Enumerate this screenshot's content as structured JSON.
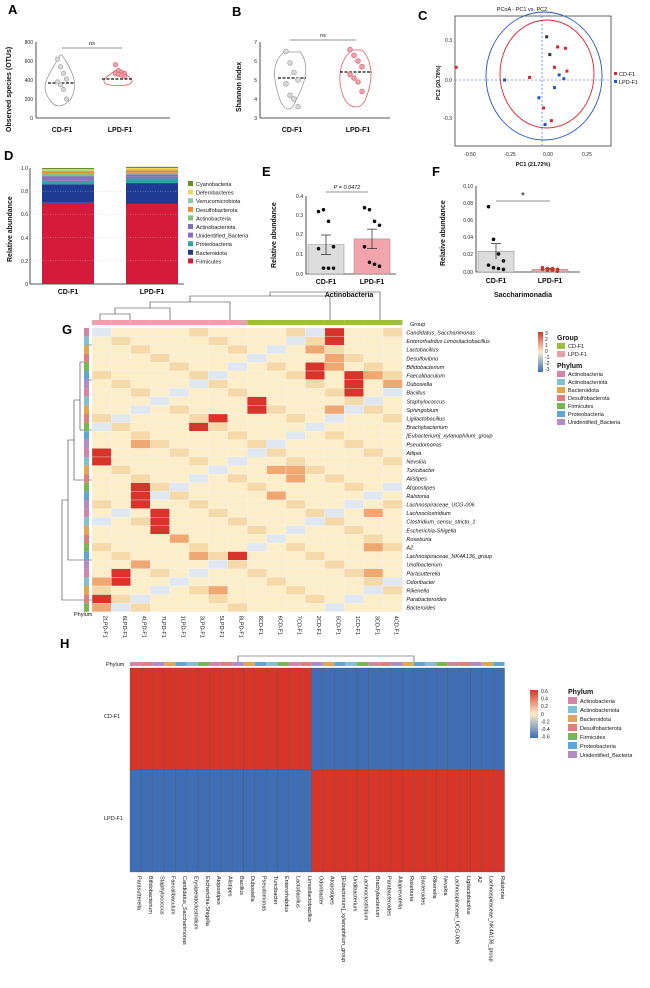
{
  "panels": {
    "A": {
      "label": "A",
      "ylabel": "Observed species (OTUs)",
      "yticks": [
        "800",
        "600",
        "400",
        "200",
        "0"
      ],
      "groups": [
        "CD-F1",
        "LPD-F1"
      ],
      "sig": "ns"
    },
    "B": {
      "label": "B",
      "ylabel": "Shannon index",
      "yticks": [
        "7",
        "6",
        "5",
        "4",
        "3"
      ],
      "groups": [
        "CD-F1",
        "LPD-F1"
      ],
      "sig": "ns"
    },
    "C": {
      "label": "C",
      "title": "PCoA - PC1 vs. PC2",
      "xlabel": "PC1 (21.72%)",
      "ylabel": "PC2 (20.78%)",
      "xticks": [
        "-0.50",
        "-0.25",
        "0.00",
        "0.25"
      ],
      "yticks": [
        "0.3",
        "0.0",
        "-0.3"
      ],
      "legend": [
        "CD-F1",
        "LPD-F1"
      ]
    },
    "D": {
      "label": "D",
      "ylabel": "Relative abundance",
      "yticks": [
        "1.0",
        "0.8",
        "0.6",
        "0.4",
        "0.2",
        "0"
      ],
      "groups": [
        "CD-F1",
        "LPD-F1"
      ],
      "legend": [
        "Cyanobacteria",
        "Deferribacteres",
        "Verrucomicrobiota",
        "Desulfobacterota",
        "Actinobacteria",
        "Actinobacteriota",
        "Unidentified_Bacteria",
        "Proteobacteria",
        "Bacteroidota",
        "Firmicutes"
      ]
    },
    "E": {
      "label": "E",
      "ylabel": "Relative abundance",
      "yticks": [
        "0.4",
        "0.3",
        "0.2",
        "0.1",
        "0.0"
      ],
      "groups": [
        "CD-F1",
        "LPD-F1"
      ],
      "xlabel": "Actinobacteria",
      "pvalue": "P = 0.0472"
    },
    "F": {
      "label": "F",
      "ylabel": "Relative abundance",
      "yticks": [
        "0.10",
        "0.08",
        "0.06",
        "0.04",
        "0.02",
        "0.00"
      ],
      "groups": [
        "CD-F1",
        "LPD-F1"
      ],
      "xlabel": "Saccharimonadia",
      "sig": "*"
    },
    "G": {
      "label": "G",
      "group_title": "Group",
      "row_label": "Phylum",
      "groups": [
        "CD-F1",
        "LPD-F1"
      ],
      "phylum_title": "Phylum",
      "phyla": [
        "Actinobacteria",
        "Actinobacteriota",
        "Bacteroidota",
        "Desulfobacterota",
        "Firmicutes",
        "Proteobacteria",
        "Unidentified_Bacteria"
      ],
      "scale_ticks": [
        "3",
        "2",
        "1",
        "0",
        "-1",
        "-2",
        "-3"
      ],
      "columns": [
        "2LPD-F1",
        "6LPD-F1",
        "4LPD-F1",
        "7LPD-F1",
        "1LPD-F1",
        "3LPD-F1",
        "5LPD-F1",
        "8LPD-F1",
        "8CD-F1",
        "6CD-F1",
        "7CD-F1",
        "2CD-F1",
        "5CD-F1",
        "1CD-F1",
        "3CD-F1",
        "4CD-F1"
      ],
      "rows": [
        "Candidatus_Saccharimonas",
        "Enterorhabdus Limosilactobacillus",
        "Lactobacillus",
        "Desulfovibrio",
        "Bifidobacterium",
        "Faecalibaculum",
        "Dubosiella",
        "Bacillus",
        "Staphylococcus",
        "Sphingobium",
        "Ligilactobacillus",
        "Brachybacterium",
        "[Eubacterium]_xylanophilum_group",
        "Pseudomonas",
        "Atlipia",
        "Nevskia",
        "Turicibacter",
        "Alistipes",
        "Atopostipes",
        "Ralstonia",
        "Lachnospiraceae_UCG-006",
        "Lachnoclostridium",
        "Clostridium_sensu_stricto_1",
        "Escherichia-Shigella",
        "Roseburia",
        "A2",
        "Lachnospiraceae_NK4A136_group",
        "Undibacterium",
        "Parasutterella",
        "Odoribacter",
        "Rikenella",
        "Parabacteroides",
        "Bacteroides"
      ]
    },
    "H": {
      "label": "H",
      "row_label": "Phylum",
      "rows": [
        "CD-F1",
        "LPD-F1"
      ],
      "phylum_title": "Phylum",
      "phyla": [
        "Actinobacteria",
        "Actinobacteriota",
        "Bacteroidota",
        "Desulfobacterota",
        "Firmicutes",
        "Proteobacteria",
        "Unidentified_Bacteria"
      ],
      "scale_ticks": [
        "0.6",
        "0.4",
        "0.2",
        "0",
        "-0.2",
        "-0.4",
        "-0.6"
      ],
      "columns_left": [
        "Parasutterella",
        "Bifidobacterium",
        "Staphylococcus",
        "Faecalibaculum",
        "Candidatus_Saccharimonas",
        "Erysipelatoclostridium",
        "Escherichia-Shigella",
        "Atopostipes",
        "Alistipes",
        "Bacillus",
        "Dubosiella",
        "Pseudomonas",
        "Turicibacter",
        "Enterorhabdus",
        "Lactobacillus",
        "Limosilactobacillus"
      ],
      "columns_right": [
        "Odoribacter",
        "Atopostipes",
        "[Eubacterium]_xylanophilum_group",
        "Undibacterium",
        "Lachnoclostridium",
        "Brachybacterium",
        "Parabacteroides",
        "Alloprevotella",
        "Roseburia",
        "Bacteroides",
        "Rikenella",
        "Nevskia",
        "Lachnospiraceae_UCG-006",
        "Ligilactobacillus",
        "A2",
        "Lachnospiraceae_NK4A136_group",
        "Ralstonia"
      ],
      "red_columns": [
        "Bifidobacterium",
        "Lactobacillus"
      ]
    }
  },
  "chart_data": [
    {
      "type": "scatter",
      "title": "",
      "ylabel": "Observed species (OTUs)",
      "ylim": [
        0,
        800
      ],
      "series": [
        {
          "name": "CD-F1",
          "values": [
            620,
            540,
            470,
            410,
            380,
            350,
            300,
            200
          ]
        },
        {
          "name": "LPD-F1",
          "values": [
            560,
            500,
            480,
            470,
            465,
            460,
            450,
            440
          ]
        }
      ]
    },
    {
      "type": "scatter",
      "ylabel": "Shannon index",
      "ylim": [
        3,
        7
      ],
      "series": [
        {
          "name": "CD-F1",
          "values": [
            6.5,
            5.9,
            5.4,
            5.0,
            4.8,
            4.2,
            4.0,
            3.6
          ]
        },
        {
          "name": "LPD-F1",
          "values": [
            6.6,
            6.3,
            6.0,
            5.7,
            5.3,
            5.1,
            4.9,
            4.4
          ]
        }
      ]
    },
    {
      "type": "scatter",
      "title": "PCoA - PC1 vs. PC2",
      "xlabel": "PC1 (21.72%)",
      "ylabel": "PC2 (20.78%)",
      "series": [
        {
          "name": "CD-F1",
          "points": [
            [
              -0.55,
              0.1
            ],
            [
              0.1,
              0.26
            ],
            [
              0.15,
              0.25
            ],
            [
              0.08,
              0.1
            ],
            [
              0.16,
              0.07
            ],
            [
              -0.08,
              0.02
            ],
            [
              0.01,
              -0.22
            ],
            [
              0.06,
              -0.32
            ]
          ]
        },
        {
          "name": "LPD-F1",
          "points": [
            [
              0.03,
              0.34
            ],
            [
              0.05,
              0.2
            ],
            [
              0.11,
              0.04
            ],
            [
              0.14,
              0.01
            ],
            [
              -0.24,
              0.0
            ],
            [
              -0.02,
              -0.14
            ],
            [
              0.02,
              -0.35
            ],
            [
              0.08,
              -0.06
            ]
          ]
        }
      ]
    },
    {
      "type": "bar",
      "ylabel": "Relative abundance",
      "categories": [
        "CD-F1",
        "LPD-F1"
      ],
      "ylim": [
        0,
        1
      ],
      "series": [
        {
          "name": "Firmicutes",
          "values": [
            0.7,
            0.69
          ],
          "color": "#d61a3c"
        },
        {
          "name": "Bacteroidota",
          "values": [
            0.16,
            0.18
          ],
          "color": "#1f3a93"
        },
        {
          "name": "Proteobacteria",
          "values": [
            0.03,
            0.04
          ],
          "color": "#2aa7a0"
        },
        {
          "name": "Unidentified_Bacteria",
          "values": [
            0.02,
            0.02
          ],
          "color": "#8e6cc1"
        },
        {
          "name": "Actinobacteriota",
          "values": [
            0.02,
            0.015
          ],
          "color": "#7c75b8"
        },
        {
          "name": "Actinobacteria",
          "values": [
            0.02,
            0.015
          ],
          "color": "#7fc27a"
        },
        {
          "name": "Desulfobacterota",
          "values": [
            0.02,
            0.02
          ],
          "color": "#f08b2c"
        },
        {
          "name": "Verrucomicrobiota",
          "values": [
            0.01,
            0.01
          ],
          "color": "#8cc7a0"
        },
        {
          "name": "Deferribacteres",
          "values": [
            0.01,
            0.01
          ],
          "color": "#e8dc5a"
        },
        {
          "name": "Cyanobacteria",
          "values": [
            0.01,
            0.01
          ],
          "color": "#6b8e23"
        }
      ]
    },
    {
      "type": "bar",
      "xlabel": "Actinobacteria",
      "ylabel": "Relative abundance",
      "categories": [
        "CD-F1",
        "LPD-F1"
      ],
      "values": [
        0.15,
        0.18
      ],
      "errors": [
        0.05,
        0.05
      ],
      "ylim": [
        0,
        0.4
      ],
      "points": [
        [
          0.32,
          0.33,
          0.27,
          0.14,
          0.13,
          0.03,
          0.03,
          0.03
        ],
        [
          0.34,
          0.33,
          0.27,
          0.25,
          0.14,
          0.06,
          0.05,
          0.04
        ]
      ]
    },
    {
      "type": "bar",
      "xlabel": "Saccharimonadia",
      "ylabel": "Relative abundance",
      "categories": [
        "CD-F1",
        "LPD-F1"
      ],
      "values": [
        0.024,
        0.003
      ],
      "errors": [
        0.009,
        0.001
      ],
      "ylim": [
        0,
        0.1
      ],
      "points": [
        [
          0.076,
          0.038,
          0.021,
          0.013,
          0.008,
          0.005,
          0.004,
          0.003
        ],
        [
          0.005,
          0.004,
          0.004,
          0.003,
          0.003,
          0.002,
          0.002,
          0.001
        ]
      ]
    },
    {
      "type": "heatmap",
      "xlabel": "",
      "ylabel": "",
      "zlim": [
        -3,
        3
      ]
    },
    {
      "type": "heatmap",
      "zlim": [
        -0.6,
        0.6
      ],
      "rows": [
        "CD-F1",
        "LPD-F1"
      ],
      "values": [
        [
          0.6,
          -0.6
        ],
        [
          -0.6,
          0.6
        ]
      ]
    }
  ]
}
